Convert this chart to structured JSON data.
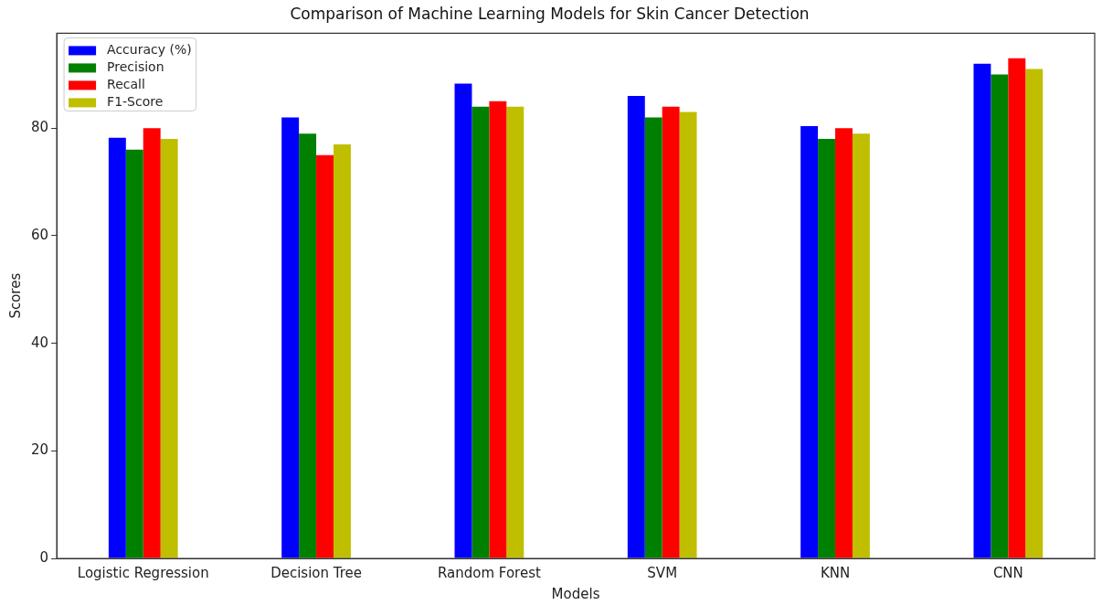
{
  "chart_data": {
    "type": "bar",
    "title": "Comparison of Machine Learning Models for Skin Cancer Detection",
    "xlabel": "Models",
    "ylabel": "Scores",
    "categories": [
      "Logistic Regression",
      "Decision Tree",
      "Random Forest",
      "SVM",
      "KNN",
      "CNN"
    ],
    "series": [
      {
        "name": "Accuracy (%)",
        "color": "#0000ff",
        "values": [
          78.2,
          82.0,
          88.3,
          86.0,
          80.4,
          92.0
        ]
      },
      {
        "name": "Precision",
        "color": "#008000",
        "values": [
          76,
          79,
          84,
          82,
          78,
          90
        ]
      },
      {
        "name": "Recall",
        "color": "#ff0000",
        "values": [
          80,
          75,
          85,
          84,
          80,
          93
        ]
      },
      {
        "name": "F1-Score",
        "color": "#bfbf00",
        "values": [
          78,
          77,
          84,
          83,
          79,
          91
        ]
      }
    ],
    "ylim": [
      0,
      97.65
    ],
    "yticks": [
      0,
      20,
      40,
      60,
      80
    ],
    "grid": false,
    "legend": "top left"
  }
}
